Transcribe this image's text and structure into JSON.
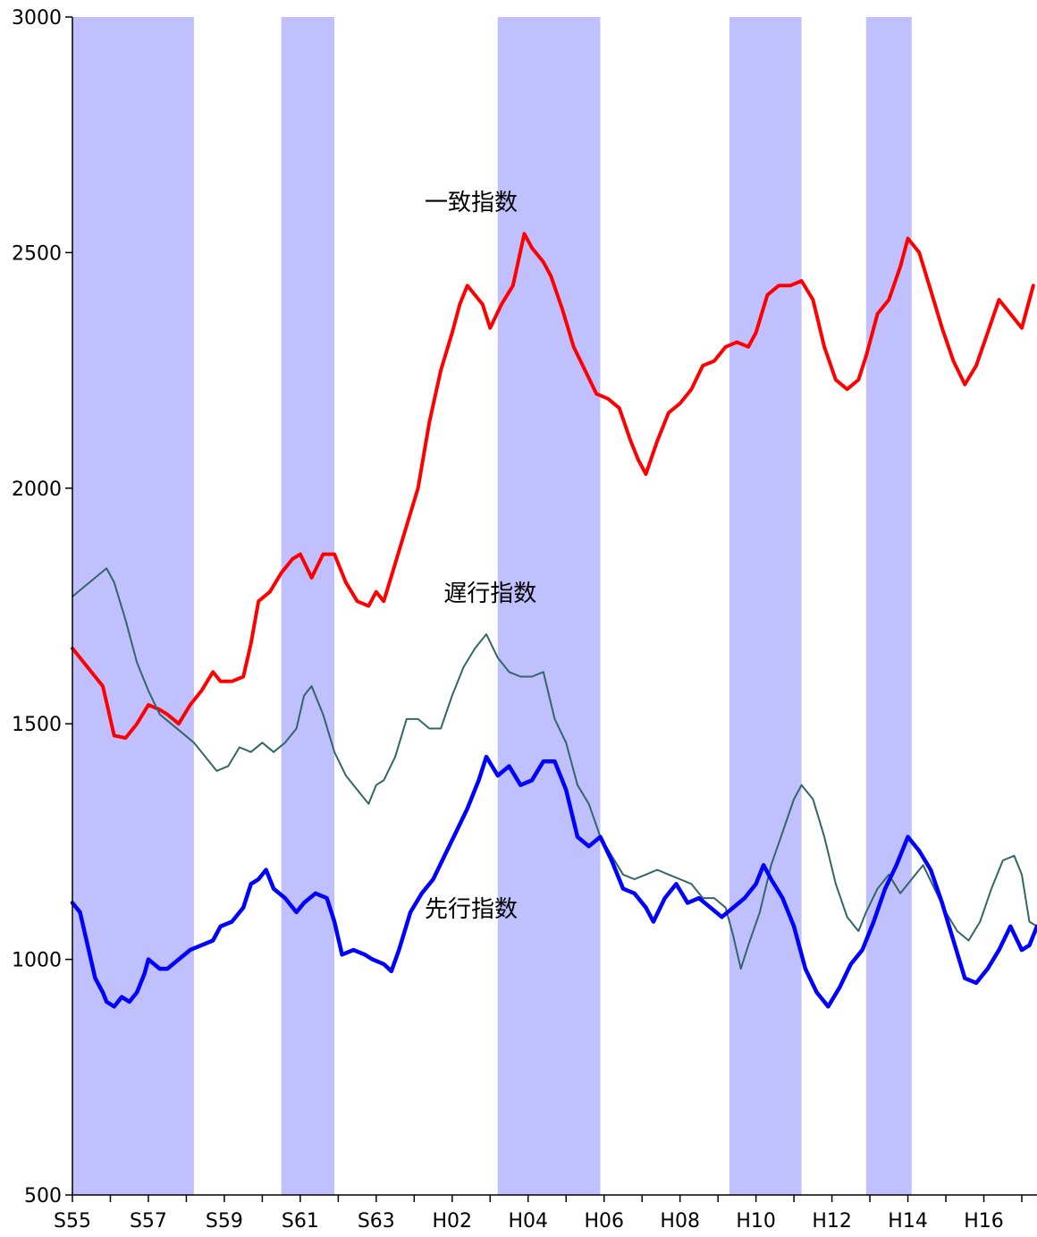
{
  "chart_data": {
    "type": "line",
    "title": "",
    "xlabel": "",
    "ylabel": "",
    "ylim": [
      500,
      3000
    ],
    "yticks": [
      "3000",
      "2500",
      "2000",
      "1500",
      "1000",
      "500"
    ],
    "ytick_values": [
      3000,
      2500,
      2000,
      1500,
      1000,
      500
    ],
    "xlim": [
      1980.0,
      2005.4
    ],
    "xtick_labels": [
      "S55",
      "S57",
      "S59",
      "S61",
      "S63",
      "H02",
      "H04",
      "H06",
      "H08",
      "H10",
      "H12",
      "H14",
      "H16"
    ],
    "xtick_years": [
      1980,
      1982,
      1984,
      1986,
      1988,
      1990,
      1992,
      1994,
      1996,
      1998,
      2000,
      2002,
      2004
    ],
    "grid": false,
    "legend": "none",
    "recession_bands": [
      {
        "start": 1980.0,
        "end": 1983.2
      },
      {
        "start": 1985.5,
        "end": 1986.9
      },
      {
        "start": 1991.2,
        "end": 1993.9
      },
      {
        "start": 1997.3,
        "end": 1999.2
      },
      {
        "start": 2000.9,
        "end": 2002.1
      }
    ],
    "band_color": "#c0c0ff",
    "series": [
      {
        "name": "一致指数",
        "color": "#ff0000",
        "stroke": 4,
        "label_pos": [
          1990.5,
          2590
        ],
        "points": [
          [
            1980.0,
            1660
          ],
          [
            1980.2,
            1640
          ],
          [
            1980.5,
            1610
          ],
          [
            1980.8,
            1580
          ],
          [
            1981.1,
            1475
          ],
          [
            1981.4,
            1470
          ],
          [
            1981.7,
            1500
          ],
          [
            1982.0,
            1540
          ],
          [
            1982.3,
            1530
          ],
          [
            1982.5,
            1520
          ],
          [
            1982.8,
            1500
          ],
          [
            1983.1,
            1540
          ],
          [
            1983.4,
            1570
          ],
          [
            1983.7,
            1610
          ],
          [
            1983.9,
            1590
          ],
          [
            1984.2,
            1590
          ],
          [
            1984.5,
            1600
          ],
          [
            1984.7,
            1670
          ],
          [
            1984.9,
            1760
          ],
          [
            1985.2,
            1780
          ],
          [
            1985.5,
            1820
          ],
          [
            1985.8,
            1850
          ],
          [
            1986.0,
            1860
          ],
          [
            1986.3,
            1810
          ],
          [
            1986.6,
            1860
          ],
          [
            1986.9,
            1860
          ],
          [
            1987.2,
            1800
          ],
          [
            1987.5,
            1760
          ],
          [
            1987.8,
            1750
          ],
          [
            1988.0,
            1780
          ],
          [
            1988.2,
            1760
          ],
          [
            1988.5,
            1840
          ],
          [
            1988.8,
            1920
          ],
          [
            1989.1,
            2000
          ],
          [
            1989.4,
            2140
          ],
          [
            1989.7,
            2250
          ],
          [
            1990.0,
            2330
          ],
          [
            1990.2,
            2390
          ],
          [
            1990.4,
            2430
          ],
          [
            1990.6,
            2410
          ],
          [
            1990.8,
            2390
          ],
          [
            1991.0,
            2340
          ],
          [
            1991.3,
            2390
          ],
          [
            1991.6,
            2430
          ],
          [
            1991.9,
            2540
          ],
          [
            1992.1,
            2510
          ],
          [
            1992.4,
            2480
          ],
          [
            1992.6,
            2450
          ],
          [
            1992.9,
            2380
          ],
          [
            1993.2,
            2300
          ],
          [
            1993.5,
            2250
          ],
          [
            1993.8,
            2200
          ],
          [
            1994.1,
            2190
          ],
          [
            1994.4,
            2170
          ],
          [
            1994.7,
            2100
          ],
          [
            1994.9,
            2060
          ],
          [
            1995.1,
            2030
          ],
          [
            1995.4,
            2100
          ],
          [
            1995.7,
            2160
          ],
          [
            1996.0,
            2180
          ],
          [
            1996.3,
            2210
          ],
          [
            1996.6,
            2260
          ],
          [
            1996.9,
            2270
          ],
          [
            1997.2,
            2300
          ],
          [
            1997.5,
            2310
          ],
          [
            1997.8,
            2300
          ],
          [
            1998.0,
            2330
          ],
          [
            1998.3,
            2410
          ],
          [
            1998.6,
            2430
          ],
          [
            1998.9,
            2430
          ],
          [
            1999.2,
            2440
          ],
          [
            1999.5,
            2400
          ],
          [
            1999.8,
            2300
          ],
          [
            2000.1,
            2230
          ],
          [
            2000.4,
            2210
          ],
          [
            2000.7,
            2230
          ],
          [
            2000.9,
            2280
          ],
          [
            2001.2,
            2370
          ],
          [
            2001.5,
            2400
          ],
          [
            2001.8,
            2470
          ],
          [
            2002.0,
            2530
          ],
          [
            2002.3,
            2500
          ],
          [
            2002.6,
            2420
          ],
          [
            2002.9,
            2340
          ],
          [
            2003.2,
            2270
          ],
          [
            2003.5,
            2220
          ],
          [
            2003.8,
            2260
          ],
          [
            2004.1,
            2330
          ],
          [
            2004.4,
            2400
          ],
          [
            2004.7,
            2370
          ],
          [
            2005.0,
            2340
          ],
          [
            2005.3,
            2430
          ]
        ]
      },
      {
        "name": "遅行指数",
        "color": "#336666",
        "stroke": 2,
        "label_pos": [
          1991.0,
          1760
        ],
        "points": [
          [
            1980.0,
            1770
          ],
          [
            1980.3,
            1790
          ],
          [
            1980.6,
            1810
          ],
          [
            1980.9,
            1830
          ],
          [
            1981.1,
            1800
          ],
          [
            1981.4,
            1720
          ],
          [
            1981.7,
            1630
          ],
          [
            1982.0,
            1570
          ],
          [
            1982.3,
            1520
          ],
          [
            1982.6,
            1500
          ],
          [
            1982.9,
            1480
          ],
          [
            1983.2,
            1460
          ],
          [
            1983.5,
            1430
          ],
          [
            1983.8,
            1400
          ],
          [
            1984.1,
            1410
          ],
          [
            1984.4,
            1450
          ],
          [
            1984.7,
            1440
          ],
          [
            1985.0,
            1460
          ],
          [
            1985.3,
            1440
          ],
          [
            1985.6,
            1460
          ],
          [
            1985.9,
            1490
          ],
          [
            1986.1,
            1560
          ],
          [
            1986.3,
            1580
          ],
          [
            1986.6,
            1520
          ],
          [
            1986.9,
            1440
          ],
          [
            1987.2,
            1390
          ],
          [
            1987.5,
            1360
          ],
          [
            1987.8,
            1330
          ],
          [
            1988.0,
            1370
          ],
          [
            1988.2,
            1380
          ],
          [
            1988.5,
            1430
          ],
          [
            1988.8,
            1510
          ],
          [
            1989.1,
            1510
          ],
          [
            1989.4,
            1490
          ],
          [
            1989.7,
            1490
          ],
          [
            1990.0,
            1560
          ],
          [
            1990.3,
            1620
          ],
          [
            1990.6,
            1660
          ],
          [
            1990.9,
            1690
          ],
          [
            1991.2,
            1640
          ],
          [
            1991.5,
            1610
          ],
          [
            1991.8,
            1600
          ],
          [
            1992.1,
            1600
          ],
          [
            1992.4,
            1610
          ],
          [
            1992.7,
            1510
          ],
          [
            1993.0,
            1460
          ],
          [
            1993.3,
            1370
          ],
          [
            1993.6,
            1330
          ],
          [
            1993.9,
            1260
          ],
          [
            1994.2,
            1220
          ],
          [
            1994.5,
            1180
          ],
          [
            1994.8,
            1170
          ],
          [
            1995.1,
            1180
          ],
          [
            1995.4,
            1190
          ],
          [
            1995.7,
            1180
          ],
          [
            1996.0,
            1170
          ],
          [
            1996.3,
            1160
          ],
          [
            1996.6,
            1130
          ],
          [
            1996.9,
            1130
          ],
          [
            1997.2,
            1110
          ],
          [
            1997.4,
            1050
          ],
          [
            1997.6,
            980
          ],
          [
            1997.8,
            1030
          ],
          [
            1998.1,
            1100
          ],
          [
            1998.4,
            1200
          ],
          [
            1998.7,
            1270
          ],
          [
            1999.0,
            1340
          ],
          [
            1999.2,
            1370
          ],
          [
            1999.5,
            1340
          ],
          [
            1999.8,
            1260
          ],
          [
            2000.1,
            1160
          ],
          [
            2000.4,
            1090
          ],
          [
            2000.7,
            1060
          ],
          [
            2000.9,
            1100
          ],
          [
            2001.2,
            1150
          ],
          [
            2001.5,
            1180
          ],
          [
            2001.8,
            1140
          ],
          [
            2002.1,
            1170
          ],
          [
            2002.4,
            1200
          ],
          [
            2002.7,
            1150
          ],
          [
            2003.0,
            1100
          ],
          [
            2003.3,
            1060
          ],
          [
            2003.6,
            1040
          ],
          [
            2003.9,
            1080
          ],
          [
            2004.2,
            1150
          ],
          [
            2004.5,
            1210
          ],
          [
            2004.8,
            1220
          ],
          [
            2005.0,
            1180
          ],
          [
            2005.2,
            1080
          ],
          [
            2005.4,
            1070
          ]
        ]
      },
      {
        "name": "先行指数",
        "color": "#0000ff",
        "stroke": 4.5,
        "label_pos": [
          1990.5,
          1090
        ],
        "points": [
          [
            1980.0,
            1120
          ],
          [
            1980.2,
            1100
          ],
          [
            1980.4,
            1030
          ],
          [
            1980.6,
            960
          ],
          [
            1980.8,
            930
          ],
          [
            1980.9,
            910
          ],
          [
            1981.1,
            900
          ],
          [
            1981.3,
            920
          ],
          [
            1981.5,
            910
          ],
          [
            1981.7,
            930
          ],
          [
            1981.9,
            970
          ],
          [
            1982.0,
            1000
          ],
          [
            1982.3,
            980
          ],
          [
            1982.5,
            980
          ],
          [
            1982.8,
            1000
          ],
          [
            1983.1,
            1020
          ],
          [
            1983.4,
            1030
          ],
          [
            1983.7,
            1040
          ],
          [
            1983.9,
            1070
          ],
          [
            1984.2,
            1080
          ],
          [
            1984.5,
            1110
          ],
          [
            1984.7,
            1160
          ],
          [
            1984.9,
            1170
          ],
          [
            1985.1,
            1190
          ],
          [
            1985.3,
            1150
          ],
          [
            1985.6,
            1130
          ],
          [
            1985.9,
            1100
          ],
          [
            1986.1,
            1120
          ],
          [
            1986.4,
            1140
          ],
          [
            1986.7,
            1130
          ],
          [
            1986.9,
            1080
          ],
          [
            1987.1,
            1010
          ],
          [
            1987.4,
            1020
          ],
          [
            1987.7,
            1010
          ],
          [
            1987.9,
            1000
          ],
          [
            1988.2,
            990
          ],
          [
            1988.4,
            975
          ],
          [
            1988.6,
            1020
          ],
          [
            1988.9,
            1100
          ],
          [
            1989.2,
            1140
          ],
          [
            1989.5,
            1170
          ],
          [
            1989.8,
            1220
          ],
          [
            1990.1,
            1270
          ],
          [
            1990.4,
            1320
          ],
          [
            1990.7,
            1380
          ],
          [
            1990.9,
            1430
          ],
          [
            1991.2,
            1390
          ],
          [
            1991.5,
            1410
          ],
          [
            1991.8,
            1370
          ],
          [
            1992.1,
            1380
          ],
          [
            1992.4,
            1420
          ],
          [
            1992.7,
            1420
          ],
          [
            1993.0,
            1360
          ],
          [
            1993.3,
            1260
          ],
          [
            1993.6,
            1240
          ],
          [
            1993.9,
            1260
          ],
          [
            1994.2,
            1210
          ],
          [
            1994.5,
            1150
          ],
          [
            1994.8,
            1140
          ],
          [
            1995.1,
            1110
          ],
          [
            1995.3,
            1080
          ],
          [
            1995.6,
            1130
          ],
          [
            1995.9,
            1160
          ],
          [
            1996.2,
            1120
          ],
          [
            1996.5,
            1130
          ],
          [
            1996.8,
            1110
          ],
          [
            1997.1,
            1090
          ],
          [
            1997.4,
            1110
          ],
          [
            1997.7,
            1130
          ],
          [
            1998.0,
            1160
          ],
          [
            1998.2,
            1200
          ],
          [
            1998.4,
            1170
          ],
          [
            1998.7,
            1130
          ],
          [
            1999.0,
            1070
          ],
          [
            1999.3,
            980
          ],
          [
            1999.6,
            930
          ],
          [
            1999.9,
            900
          ],
          [
            2000.2,
            940
          ],
          [
            2000.5,
            990
          ],
          [
            2000.8,
            1020
          ],
          [
            2001.1,
            1080
          ],
          [
            2001.4,
            1150
          ],
          [
            2001.7,
            1200
          ],
          [
            2002.0,
            1260
          ],
          [
            2002.3,
            1230
          ],
          [
            2002.6,
            1190
          ],
          [
            2002.9,
            1120
          ],
          [
            2003.2,
            1040
          ],
          [
            2003.5,
            960
          ],
          [
            2003.8,
            950
          ],
          [
            2004.1,
            980
          ],
          [
            2004.4,
            1020
          ],
          [
            2004.7,
            1070
          ],
          [
            2005.0,
            1020
          ],
          [
            2005.2,
            1030
          ],
          [
            2005.4,
            1070
          ]
        ]
      }
    ]
  }
}
